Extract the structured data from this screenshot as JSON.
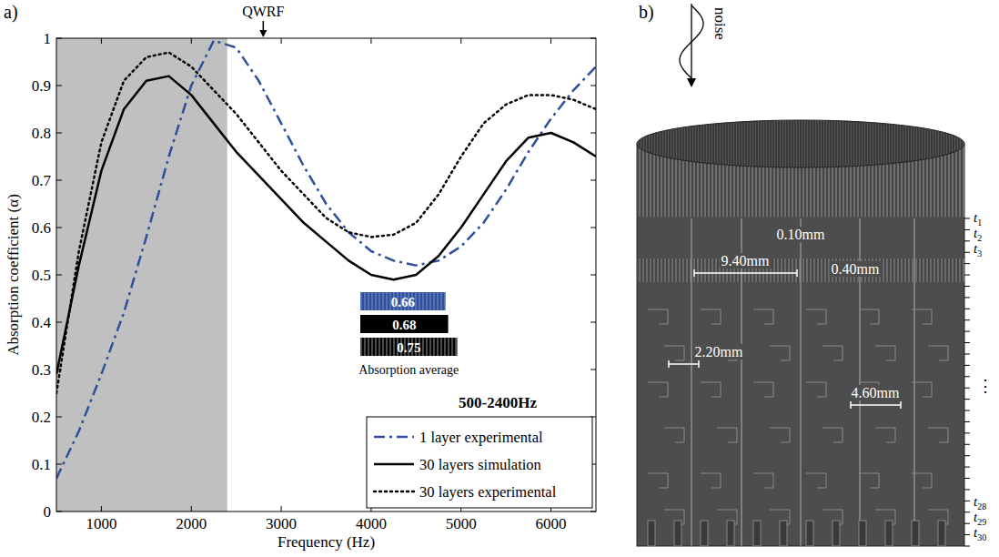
{
  "chart_data": {
    "type": "line",
    "panel_label": "a)",
    "x_label": "Frequency (Hz)",
    "y_label": "Absorption coefficient (α)",
    "x": [
      500,
      750,
      1000,
      1250,
      1500,
      1750,
      2000,
      2250,
      2500,
      2750,
      3000,
      3250,
      3500,
      3750,
      4000,
      4250,
      4500,
      4750,
      5000,
      5250,
      5500,
      5750,
      6000,
      6250,
      6500
    ],
    "xlim": [
      500,
      6500
    ],
    "xticks": [
      1000,
      2000,
      3000,
      4000,
      5000,
      6000
    ],
    "ylim": [
      0,
      1
    ],
    "yticks": [
      0,
      0.1,
      0.2,
      0.3,
      0.4,
      0.5,
      0.6,
      0.7,
      0.8,
      0.9,
      1
    ],
    "grid": false,
    "legend": "lower right",
    "series": [
      {
        "name": "1 layer experimental",
        "color": "#2e4f9c",
        "line_style": "dashdot",
        "values": [
          0.07,
          0.17,
          0.29,
          0.42,
          0.58,
          0.75,
          0.9,
          0.995,
          0.98,
          0.91,
          0.82,
          0.73,
          0.65,
          0.59,
          0.55,
          0.53,
          0.52,
          0.53,
          0.56,
          0.61,
          0.68,
          0.76,
          0.83,
          0.89,
          0.94
        ]
      },
      {
        "name": "30 layers simulation",
        "color": "#000000",
        "line_style": "solid",
        "values": [
          0.29,
          0.52,
          0.72,
          0.85,
          0.91,
          0.92,
          0.88,
          0.82,
          0.76,
          0.71,
          0.66,
          0.61,
          0.57,
          0.53,
          0.5,
          0.49,
          0.5,
          0.54,
          0.6,
          0.67,
          0.74,
          0.79,
          0.8,
          0.78,
          0.75
        ]
      },
      {
        "name": "30 layers experimental",
        "color": "#000000",
        "line_style": "dotted",
        "values": [
          0.25,
          0.55,
          0.78,
          0.91,
          0.96,
          0.97,
          0.94,
          0.89,
          0.84,
          0.78,
          0.72,
          0.67,
          0.62,
          0.59,
          0.58,
          0.585,
          0.61,
          0.67,
          0.75,
          0.82,
          0.86,
          0.88,
          0.88,
          0.87,
          0.85
        ]
      }
    ],
    "highlight": {
      "range": [
        500,
        2400
      ],
      "label": "500-2400Hz"
    },
    "annotations": [
      {
        "text": "QWRF",
        "x": 2800
      }
    ],
    "inset": {
      "title": "Absorption average",
      "values": [
        0.66,
        0.68,
        0.75
      ],
      "colors": [
        "#2e4f9c",
        "#000000",
        "#000000"
      ]
    }
  },
  "diagram": {
    "panel_label": "b)",
    "arrow_label": "noise",
    "dimensions": [
      "0.10mm",
      "9.40mm",
      "0.40mm",
      "2.20mm",
      "4.60mm"
    ],
    "layer_symbol": "t",
    "layer_indices": [
      1,
      2,
      3,
      28,
      29,
      30
    ],
    "ellipsis": "⋮"
  }
}
